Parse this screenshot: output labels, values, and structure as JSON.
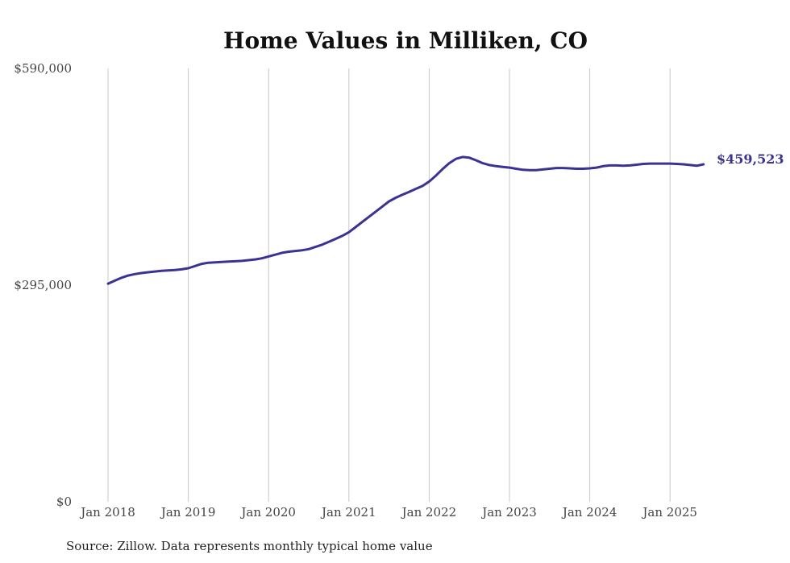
{
  "chart_data": {
    "type": "line",
    "title": "Home Values in Milliken, CO",
    "xlabel": "",
    "ylabel": "",
    "ylim": [
      0,
      590000
    ],
    "y_ticks": [
      {
        "value": 0,
        "label": "$0"
      },
      {
        "value": 295000,
        "label": "$295,000"
      },
      {
        "value": 590000,
        "label": "$590,000"
      }
    ],
    "x_ticks": [
      {
        "value": "2018-01",
        "label": "Jan 2018"
      },
      {
        "value": "2019-01",
        "label": "Jan 2019"
      },
      {
        "value": "2020-01",
        "label": "Jan 2020"
      },
      {
        "value": "2021-01",
        "label": "Jan 2021"
      },
      {
        "value": "2022-01",
        "label": "Jan 2022"
      },
      {
        "value": "2023-01",
        "label": "Jan 2023"
      },
      {
        "value": "2024-01",
        "label": "Jan 2024"
      },
      {
        "value": "2025-01",
        "label": "Jan 2025"
      }
    ],
    "grid": "vertical",
    "series_color": "#3a3393",
    "end_label": "$459,523",
    "source": "Source: Zillow. Data represents monthly typical home value",
    "series": [
      {
        "x": [
          "2018-01",
          "2018-02",
          "2018-03",
          "2018-04",
          "2018-05",
          "2018-06",
          "2018-07",
          "2018-08",
          "2018-09",
          "2018-10",
          "2018-11",
          "2018-12",
          "2019-01",
          "2019-02",
          "2019-03",
          "2019-04",
          "2019-05",
          "2019-06",
          "2019-07",
          "2019-08",
          "2019-09",
          "2019-10",
          "2019-11",
          "2019-12",
          "2020-01",
          "2020-02",
          "2020-03",
          "2020-04",
          "2020-05",
          "2020-06",
          "2020-07",
          "2020-08",
          "2020-09",
          "2020-10",
          "2020-11",
          "2020-12",
          "2021-01",
          "2021-02",
          "2021-03",
          "2021-04",
          "2021-05",
          "2021-06",
          "2021-07",
          "2021-08",
          "2021-09",
          "2021-10",
          "2021-11",
          "2021-12",
          "2022-01",
          "2022-02",
          "2022-03",
          "2022-04",
          "2022-05",
          "2022-06",
          "2022-07",
          "2022-08",
          "2022-09",
          "2022-10",
          "2022-11",
          "2022-12",
          "2023-01",
          "2023-02",
          "2023-03",
          "2023-04",
          "2023-05",
          "2023-06",
          "2023-07",
          "2023-08",
          "2023-09",
          "2023-10",
          "2023-11",
          "2023-12",
          "2024-01",
          "2024-02",
          "2024-03",
          "2024-04",
          "2024-05",
          "2024-06",
          "2024-07",
          "2024-08",
          "2024-09",
          "2024-10",
          "2024-11",
          "2024-12",
          "2025-01",
          "2025-02",
          "2025-03",
          "2025-04",
          "2025-05",
          "2025-06"
        ],
        "values": [
          297000,
          301000,
          305000,
          308000,
          310000,
          311500,
          312500,
          313500,
          314500,
          315000,
          315500,
          316500,
          318000,
          321000,
          324000,
          325500,
          326000,
          326500,
          327000,
          327500,
          328000,
          329000,
          330000,
          331500,
          334000,
          336500,
          339000,
          340500,
          341500,
          342500,
          344000,
          347000,
          350000,
          354000,
          358000,
          362000,
          367000,
          374000,
          381000,
          388000,
          395000,
          402000,
          409000,
          414000,
          418000,
          422000,
          426000,
          430000,
          436000,
          444000,
          453000,
          461000,
          467000,
          469500,
          468500,
          465000,
          461000,
          458500,
          457000,
          456000,
          455000,
          453500,
          452000,
          451500,
          451500,
          452500,
          453500,
          454500,
          454500,
          454000,
          453500,
          453500,
          454000,
          455000,
          457000,
          458000,
          458000,
          457500,
          458000,
          459000,
          460000,
          460500,
          460500,
          460500,
          460500,
          460000,
          459500,
          458500,
          457500,
          459523
        ]
      }
    ]
  }
}
